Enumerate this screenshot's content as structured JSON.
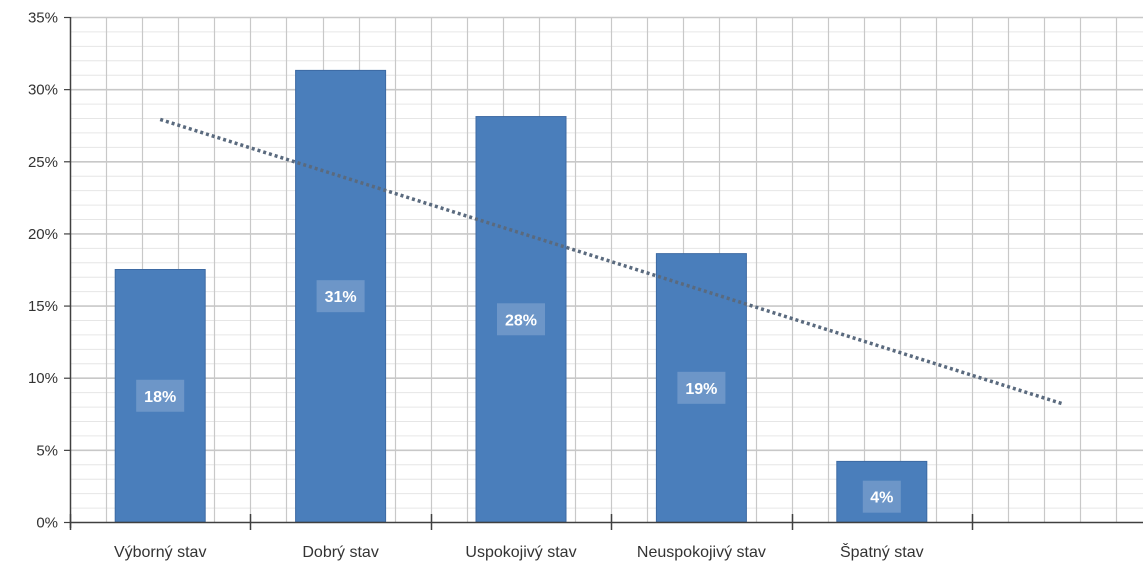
{
  "chart_data": {
    "type": "bar",
    "title": "",
    "xlabel": "",
    "ylabel": "",
    "categories": [
      "Výborný stav",
      "Dobrý stav",
      "Uspokojivý stav",
      "Neuspokojivý stav",
      "Špatný stav"
    ],
    "values": [
      17.5,
      31.3,
      28.1,
      18.6,
      4.2
    ],
    "data_labels": [
      "18%",
      "31%",
      "28%",
      "19%",
      "4%"
    ],
    "ylim": [
      0,
      35
    ],
    "y_ticks": [
      0,
      5,
      10,
      15,
      20,
      25,
      30,
      35
    ],
    "y_tick_labels": [
      "0%",
      "5%",
      "10%",
      "15%",
      "20%",
      "25%",
      "30%",
      "35%"
    ],
    "grid": true,
    "legend": "none",
    "trendline": {
      "type": "linear",
      "style": "dotted",
      "start_value": 27.9,
      "end_value": 8.2
    },
    "colors": {
      "bar": "#4a7ebb",
      "bar_stroke": "#3d6aa3",
      "label_box": "#7a9fcc",
      "trendline": "#5a6a7e",
      "grid_major": "#c8c8c8",
      "grid_minor": "#e6e6e6",
      "axis": "#404040"
    }
  }
}
